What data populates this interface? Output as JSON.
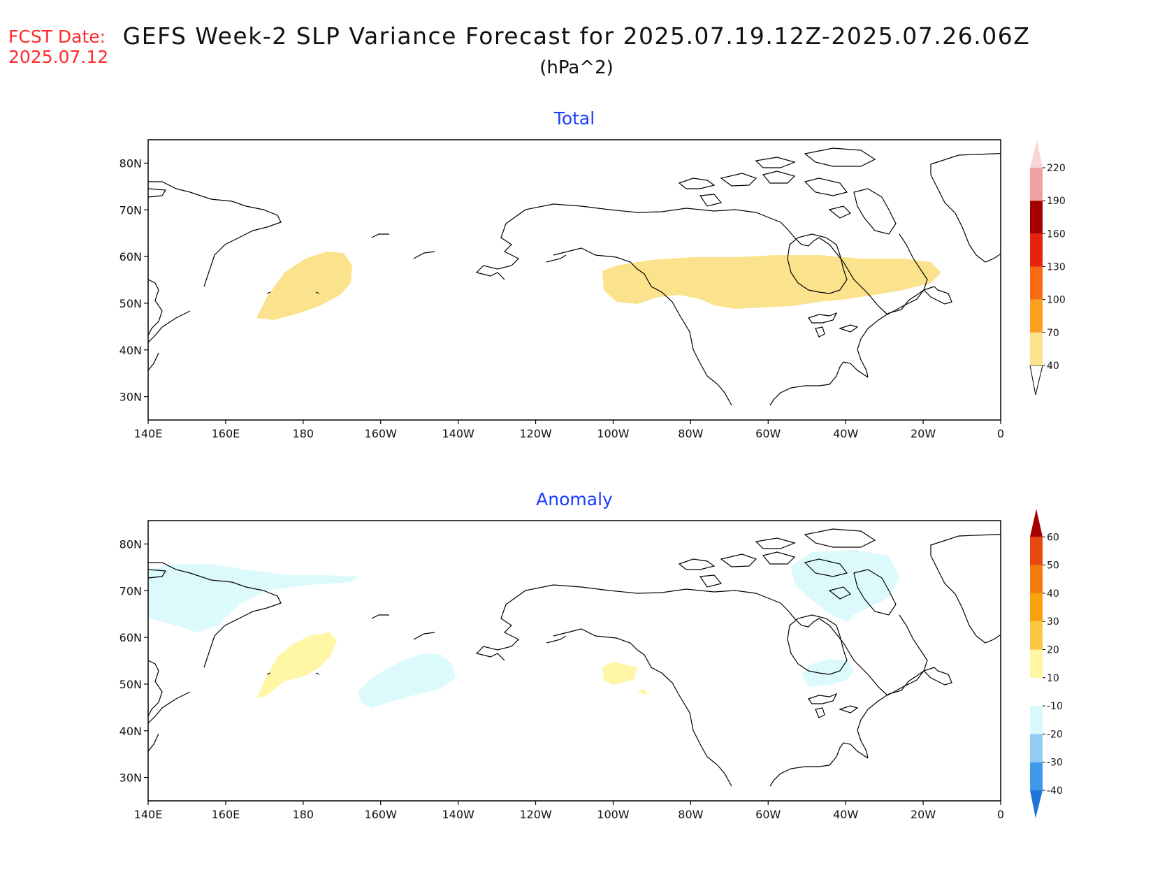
{
  "header": {
    "fcst_label": "FCST Date:",
    "fcst_date": "2025.07.12",
    "title": "GEFS Week-2 SLP Variance Forecast for 2025.07.19.12Z-2025.07.26.06Z",
    "units": "(hPa^2)"
  },
  "axes": {
    "lat_labels": [
      "80N",
      "70N",
      "60N",
      "50N",
      "40N",
      "30N"
    ],
    "lon_labels": [
      "140E",
      "160E",
      "180",
      "160W",
      "140W",
      "120W",
      "100W",
      "80W",
      "60W",
      "40W",
      "20W",
      "0"
    ]
  },
  "panels": [
    {
      "title": "Total",
      "title_color": "#1a3cff",
      "colorbar": {
        "labels": [
          "40",
          "70",
          "100",
          "130",
          "160",
          "190",
          "220"
        ],
        "colors": [
          "#fbe38d",
          "#fba01e",
          "#f86b14",
          "#e6230f",
          "#a50000",
          "#f0a2a2",
          "#f9d6d6"
        ]
      },
      "shaded_regions": [
        {
          "name": "north-pacific-region",
          "category": "40-70",
          "color": "#fbe38d"
        },
        {
          "name": "north-atlantic-region",
          "category": "40-70",
          "color": "#fbe38d"
        }
      ]
    },
    {
      "title": "Anomaly",
      "title_color": "#1a3cff",
      "colorbar": {
        "labels": [
          "-40",
          "-30",
          "-20",
          "-10",
          "10",
          "20",
          "30",
          "40",
          "50",
          "60"
        ],
        "colors": [
          "#1f76d8",
          "#3d9ae8",
          "#93cbf3",
          "#d9f8fb",
          "#ffffff",
          "#fff6a6",
          "#fbc640",
          "#f8a20d",
          "#f27b0c",
          "#e6480f",
          "#d41411",
          "#a50000"
        ]
      },
      "shaded_regions": [
        {
          "name": "bering-negative-region",
          "category": "-20 to -10",
          "color": "#dcfafc"
        },
        {
          "name": "north-pacific-positive-region",
          "category": "10-20",
          "color": "#fff6a6"
        },
        {
          "name": "gulf-of-alaska-negative-region",
          "category": "-20 to -10",
          "color": "#dcfafc"
        },
        {
          "name": "hudson-bay-positive-region",
          "category": "10-20",
          "color": "#fff6a6"
        },
        {
          "name": "labrador-sea-positive-region",
          "category": "10-20",
          "color": "#fff6a6"
        },
        {
          "name": "greenland-negative-region",
          "category": "-20 to -10",
          "color": "#dcfafc"
        },
        {
          "name": "iceland-negative-region",
          "category": "-20 to -10",
          "color": "#dcfafc"
        }
      ]
    }
  ]
}
